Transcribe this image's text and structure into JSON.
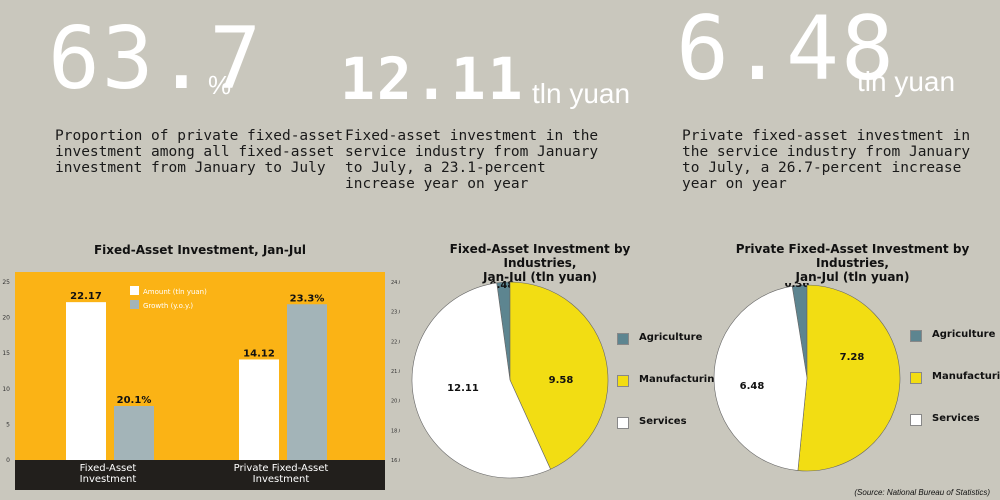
{
  "stats": [
    {
      "value": "63.7",
      "unit": "%",
      "text": "Proportion of private fixed-asset\ninvestment among all fixed-asset\ninvestment from January to July"
    },
    {
      "value": "12.11",
      "unit": "tln yuan",
      "text": "Fixed-asset investment in the\nservice industry from January\nto July, a 23.1-percent\nincrease year on year"
    },
    {
      "value": "6.48",
      "unit": "tln yuan",
      "text": "Private fixed-asset investment in\nthe service industry from January\nto July, a 26.7-percent increase\nyear on year"
    }
  ],
  "chart_data": [
    {
      "type": "bar",
      "title": "Fixed-Asset Investment, Jan-Jul",
      "categories": [
        "Fixed-Asset\nInvestment",
        "Private Fixed-Asset\nInvestment"
      ],
      "series": [
        {
          "name": "Amount (tln yuan)",
          "axis": "left",
          "values": [
            22.17,
            14.12
          ],
          "labels": [
            "22.17",
            "14.12"
          ],
          "color": "#ffffff"
        },
        {
          "name": "Growth (y.o.y.)",
          "axis": "right",
          "values": [
            20.1,
            23.3
          ],
          "labels": [
            "20.1%",
            "23.3%"
          ],
          "color": "#a3b4b8"
        }
      ],
      "y_left_ticks": [
        "0",
        "5",
        "10",
        "15",
        "20",
        "25"
      ],
      "y_left_range": [
        0,
        25
      ],
      "y_right_ticks": [
        "16.0%",
        "18.0%",
        "20.0%",
        "21.0%",
        "22.0%",
        "23.0%",
        "24.0%"
      ],
      "background": "#fbb315",
      "legend_position": "top-center"
    },
    {
      "type": "pie",
      "title": "Fixed-Asset Investment by Industries,\nJan-Jul (tln yuan)",
      "slices": [
        {
          "name": "Agriculture",
          "value": 0.48,
          "label": "0.48",
          "color": "#5d8590"
        },
        {
          "name": "Manufacturing",
          "value": 9.58,
          "label": "9.58",
          "color": "#f2dd13"
        },
        {
          "name": "Services",
          "value": 12.11,
          "label": "12.11",
          "color": "#ffffff"
        }
      ],
      "legend_position": "right"
    },
    {
      "type": "pie",
      "title": "Private Fixed-Asset Investment by Industries,\nJan-Jul (tln yuan)",
      "slices": [
        {
          "name": "Agriculture",
          "value": 0.36,
          "label": "0.36",
          "color": "#5d8590"
        },
        {
          "name": "Manufacturing",
          "value": 7.28,
          "label": "7.28",
          "color": "#f2dd13"
        },
        {
          "name": "Services",
          "value": 6.48,
          "label": "6.48",
          "color": "#ffffff"
        }
      ],
      "legend_position": "right"
    }
  ],
  "source": "(Source: National Bureau of Statistics)"
}
